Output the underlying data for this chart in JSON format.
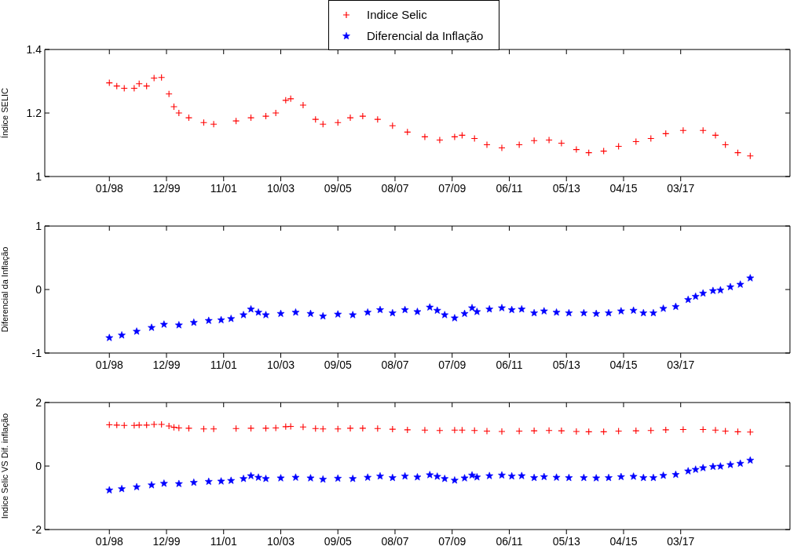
{
  "chart_data": [
    {
      "type": "scatter",
      "ylabel": "Índice SELIC",
      "ylim": [
        1,
        1.4
      ],
      "yticks": [
        1,
        1.2,
        1.4
      ],
      "xlim": [
        "1995-11",
        "2020-11"
      ],
      "xticks": [
        {
          "value": "1998-01",
          "label": "01/98"
        },
        {
          "value": "1999-12",
          "label": "12/99"
        },
        {
          "value": "2001-11",
          "label": "11/01"
        },
        {
          "value": "2003-10",
          "label": "10/03"
        },
        {
          "value": "2005-09",
          "label": "09/05"
        },
        {
          "value": "2007-08",
          "label": "08/07"
        },
        {
          "value": "2009-07",
          "label": "07/09"
        },
        {
          "value": "2011-06",
          "label": "06/11"
        },
        {
          "value": "2013-05",
          "label": "05/13"
        },
        {
          "value": "2015-04",
          "label": "04/15"
        },
        {
          "value": "2017-03",
          "label": "03/17"
        }
      ],
      "grid": false,
      "series": [
        {
          "color": "#ff0000",
          "marker": "cross",
          "x": [
            "1998-01",
            "1998-04",
            "1998-07",
            "1998-11",
            "1999-01",
            "1999-04",
            "1999-07",
            "1999-10",
            "2000-01",
            "2000-03",
            "2000-05",
            "2000-09",
            "2001-03",
            "2001-07",
            "2002-04",
            "2002-10",
            "2003-04",
            "2003-08",
            "2003-12",
            "2004-02",
            "2004-07",
            "2004-12",
            "2005-03",
            "2005-09",
            "2006-02",
            "2006-07",
            "2007-01",
            "2007-07",
            "2008-01",
            "2008-08",
            "2009-02",
            "2009-08",
            "2009-11",
            "2010-04",
            "2010-09",
            "2011-03",
            "2011-10",
            "2012-04",
            "2012-10",
            "2013-03",
            "2013-09",
            "2014-02",
            "2014-08",
            "2015-02",
            "2015-09",
            "2016-03",
            "2016-09",
            "2017-04",
            "2017-12",
            "2018-05",
            "2018-09",
            "2019-02",
            "2019-07"
          ],
          "values": [
            1.295,
            1.285,
            1.278,
            1.278,
            1.292,
            1.285,
            1.31,
            1.312,
            1.26,
            1.22,
            1.2,
            1.185,
            1.17,
            1.165,
            1.175,
            1.185,
            1.19,
            1.2,
            1.24,
            1.245,
            1.225,
            1.18,
            1.165,
            1.17,
            1.185,
            1.19,
            1.18,
            1.16,
            1.14,
            1.125,
            1.115,
            1.125,
            1.13,
            1.12,
            1.1,
            1.09,
            1.1,
            1.113,
            1.115,
            1.105,
            1.085,
            1.075,
            1.08,
            1.095,
            1.11,
            1.12,
            1.135,
            1.145,
            1.145,
            1.13,
            1.1,
            1.075,
            1.065
          ]
        }
      ]
    },
    {
      "type": "scatter",
      "ylabel": "Diferencial da Inflação",
      "ylim": [
        -1,
        1
      ],
      "yticks": [
        -1,
        0,
        1
      ],
      "xlim": [
        "1995-11",
        "2020-11"
      ],
      "xticks": [
        {
          "value": "1998-01",
          "label": "01/98"
        },
        {
          "value": "1999-12",
          "label": "12/99"
        },
        {
          "value": "2001-11",
          "label": "11/01"
        },
        {
          "value": "2003-10",
          "label": "10/03"
        },
        {
          "value": "2005-09",
          "label": "09/05"
        },
        {
          "value": "2007-08",
          "label": "08/07"
        },
        {
          "value": "2009-07",
          "label": "07/09"
        },
        {
          "value": "2011-06",
          "label": "06/11"
        },
        {
          "value": "2013-05",
          "label": "05/13"
        },
        {
          "value": "2015-04",
          "label": "04/15"
        },
        {
          "value": "2017-03",
          "label": "03/17"
        }
      ],
      "grid": false,
      "series": [
        {
          "color": "#0000ff",
          "marker": "star",
          "x": [
            "1998-01",
            "1998-06",
            "1998-12",
            "1999-06",
            "1999-11",
            "2000-05",
            "2000-11",
            "2001-05",
            "2001-10",
            "2002-02",
            "2002-07",
            "2002-10",
            "2003-01",
            "2003-04",
            "2003-10",
            "2004-04",
            "2004-10",
            "2005-03",
            "2005-09",
            "2006-03",
            "2006-09",
            "2007-02",
            "2007-07",
            "2007-12",
            "2008-05",
            "2008-10",
            "2009-01",
            "2009-04",
            "2009-08",
            "2009-12",
            "2010-03",
            "2010-05",
            "2010-10",
            "2011-03",
            "2011-07",
            "2011-11",
            "2012-04",
            "2012-08",
            "2013-01",
            "2013-06",
            "2013-12",
            "2014-05",
            "2014-10",
            "2015-03",
            "2015-08",
            "2015-12",
            "2016-04",
            "2016-08",
            "2017-01",
            "2017-06",
            "2017-09",
            "2017-12",
            "2018-04",
            "2018-07",
            "2018-11",
            "2019-03",
            "2019-07"
          ],
          "values": [
            -0.76,
            -0.72,
            -0.66,
            -0.6,
            -0.55,
            -0.56,
            -0.52,
            -0.49,
            -0.48,
            -0.46,
            -0.4,
            -0.31,
            -0.36,
            -0.4,
            -0.38,
            -0.36,
            -0.38,
            -0.42,
            -0.39,
            -0.4,
            -0.36,
            -0.32,
            -0.37,
            -0.32,
            -0.35,
            -0.28,
            -0.33,
            -0.4,
            -0.45,
            -0.38,
            -0.29,
            -0.35,
            -0.31,
            -0.29,
            -0.32,
            -0.31,
            -0.37,
            -0.34,
            -0.36,
            -0.37,
            -0.37,
            -0.38,
            -0.37,
            -0.34,
            -0.33,
            -0.37,
            -0.37,
            -0.3,
            -0.27,
            -0.16,
            -0.11,
            -0.06,
            -0.02,
            -0.01,
            0.04,
            0.08,
            0.18
          ]
        }
      ]
    },
    {
      "type": "scatter",
      "ylabel": "Indice Selic VS Dif. inflação",
      "ylim": [
        -2,
        2
      ],
      "yticks": [
        -2,
        0,
        2
      ],
      "xlim": [
        "1995-11",
        "2020-11"
      ],
      "xticks": [
        {
          "value": "1998-01",
          "label": "01/98"
        },
        {
          "value": "1999-12",
          "label": "12/99"
        },
        {
          "value": "2001-11",
          "label": "11/01"
        },
        {
          "value": "2003-10",
          "label": "10/03"
        },
        {
          "value": "2005-09",
          "label": "09/05"
        },
        {
          "value": "2007-08",
          "label": "08/07"
        },
        {
          "value": "2009-07",
          "label": "07/09"
        },
        {
          "value": "2011-06",
          "label": "06/11"
        },
        {
          "value": "2013-05",
          "label": "05/13"
        },
        {
          "value": "2015-04",
          "label": "04/15"
        },
        {
          "value": "2017-03",
          "label": "03/17"
        }
      ],
      "grid": false,
      "legend": "top",
      "series": [
        {
          "name": "Indice Selic",
          "color": "#ff0000",
          "marker": "cross",
          "x": [
            "1998-01",
            "1998-04",
            "1998-07",
            "1998-11",
            "1999-01",
            "1999-04",
            "1999-07",
            "1999-10",
            "2000-01",
            "2000-03",
            "2000-05",
            "2000-09",
            "2001-03",
            "2001-07",
            "2002-04",
            "2002-10",
            "2003-04",
            "2003-08",
            "2003-12",
            "2004-02",
            "2004-07",
            "2004-12",
            "2005-03",
            "2005-09",
            "2006-02",
            "2006-07",
            "2007-01",
            "2007-07",
            "2008-01",
            "2008-08",
            "2009-02",
            "2009-08",
            "2009-11",
            "2010-04",
            "2010-09",
            "2011-03",
            "2011-10",
            "2012-04",
            "2012-10",
            "2013-03",
            "2013-09",
            "2014-02",
            "2014-08",
            "2015-02",
            "2015-09",
            "2016-03",
            "2016-09",
            "2017-04",
            "2017-12",
            "2018-05",
            "2018-09",
            "2019-02",
            "2019-07"
          ],
          "values": [
            1.3,
            1.29,
            1.28,
            1.28,
            1.29,
            1.29,
            1.31,
            1.31,
            1.26,
            1.22,
            1.2,
            1.19,
            1.17,
            1.17,
            1.18,
            1.19,
            1.19,
            1.2,
            1.24,
            1.25,
            1.23,
            1.18,
            1.17,
            1.17,
            1.19,
            1.19,
            1.18,
            1.16,
            1.14,
            1.13,
            1.12,
            1.13,
            1.13,
            1.12,
            1.1,
            1.09,
            1.1,
            1.11,
            1.12,
            1.11,
            1.09,
            1.08,
            1.08,
            1.1,
            1.11,
            1.12,
            1.14,
            1.15,
            1.15,
            1.13,
            1.1,
            1.08,
            1.07
          ]
        },
        {
          "name": "Diferencial da Inflação",
          "color": "#0000ff",
          "marker": "star",
          "x": [
            "1998-01",
            "1998-06",
            "1998-12",
            "1999-06",
            "1999-11",
            "2000-05",
            "2000-11",
            "2001-05",
            "2001-10",
            "2002-02",
            "2002-07",
            "2002-10",
            "2003-01",
            "2003-04",
            "2003-10",
            "2004-04",
            "2004-10",
            "2005-03",
            "2005-09",
            "2006-03",
            "2006-09",
            "2007-02",
            "2007-07",
            "2007-12",
            "2008-05",
            "2008-10",
            "2009-01",
            "2009-04",
            "2009-08",
            "2009-12",
            "2010-03",
            "2010-05",
            "2010-10",
            "2011-03",
            "2011-07",
            "2011-11",
            "2012-04",
            "2012-08",
            "2013-01",
            "2013-06",
            "2013-12",
            "2014-05",
            "2014-10",
            "2015-03",
            "2015-08",
            "2015-12",
            "2016-04",
            "2016-08",
            "2017-01",
            "2017-06",
            "2017-09",
            "2017-12",
            "2018-04",
            "2018-07",
            "2018-11",
            "2019-03",
            "2019-07"
          ],
          "values": [
            -0.76,
            -0.72,
            -0.66,
            -0.6,
            -0.55,
            -0.56,
            -0.52,
            -0.49,
            -0.48,
            -0.46,
            -0.4,
            -0.31,
            -0.36,
            -0.4,
            -0.38,
            -0.36,
            -0.38,
            -0.42,
            -0.39,
            -0.4,
            -0.36,
            -0.32,
            -0.37,
            -0.32,
            -0.35,
            -0.28,
            -0.33,
            -0.4,
            -0.45,
            -0.38,
            -0.29,
            -0.35,
            -0.31,
            -0.29,
            -0.32,
            -0.31,
            -0.37,
            -0.34,
            -0.36,
            -0.37,
            -0.37,
            -0.38,
            -0.37,
            -0.34,
            -0.33,
            -0.37,
            -0.37,
            -0.3,
            -0.27,
            -0.16,
            -0.11,
            -0.06,
            -0.02,
            -0.01,
            0.04,
            0.08,
            0.18
          ]
        }
      ]
    }
  ]
}
